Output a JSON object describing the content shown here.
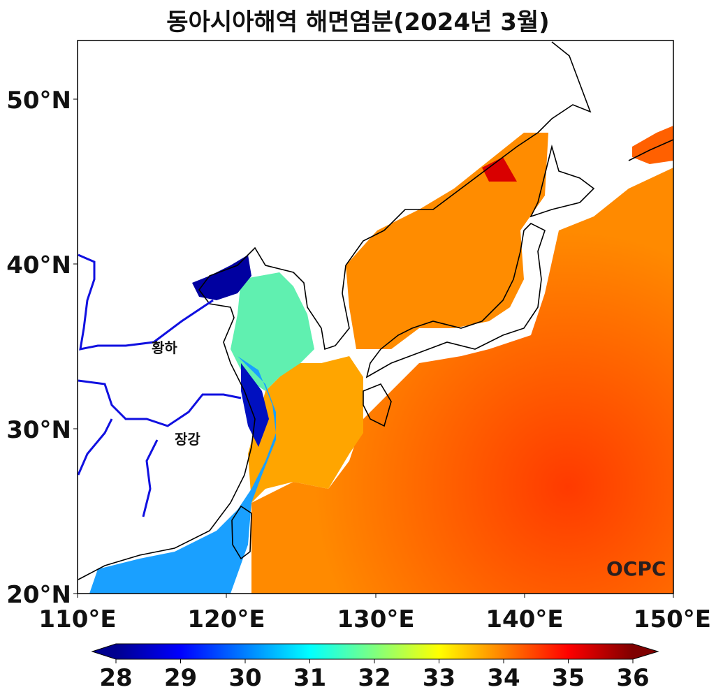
{
  "title": "동아시아해역 해면염분(2024년 3월)",
  "map": {
    "lon_range": [
      110,
      150
    ],
    "lat_range": [
      20,
      53.5
    ],
    "x_ticks": [
      "110°E",
      "120°E",
      "130°E",
      "140°E",
      "150°E"
    ],
    "y_ticks": [
      "20°N",
      "30°N",
      "40°N",
      "50°N"
    ],
    "labels": {
      "yellow_river": "황하",
      "yangtze": "장강"
    },
    "logo": "OCPC",
    "land_color": "#ffffff",
    "coastline_color": "#000000",
    "river_color": "#1010e0"
  },
  "colorbar": {
    "min": 28,
    "max": 36,
    "ticks": [
      "28",
      "29",
      "30",
      "31",
      "32",
      "33",
      "34",
      "35",
      "36"
    ],
    "colormap": "jet",
    "extend": "both"
  }
}
